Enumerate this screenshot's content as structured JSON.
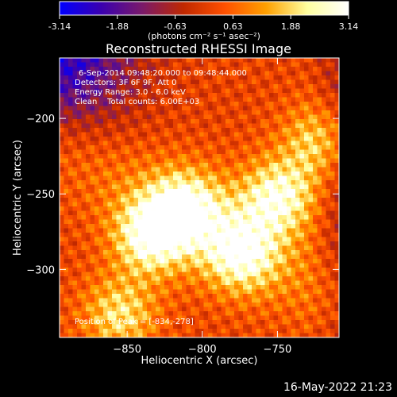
{
  "chart_data": {
    "type": "heatmap",
    "title": "Reconstructed RHESSI Image",
    "xlabel": "Heliocentric X (arcsec)",
    "ylabel": "Heliocentric Y (arcsec)",
    "xlim": [
      -895,
      -709
    ],
    "ylim": [
      -345,
      -160
    ],
    "xticks": [
      -850,
      -800,
      -750
    ],
    "yticks": [
      -200,
      -250,
      -300
    ],
    "colorbar": {
      "range": [
        -3.14,
        3.14
      ],
      "ticks": [
        "-3.14",
        "-1.88",
        "-0.63",
        "0.63",
        "1.88",
        "3.14"
      ],
      "unit_label": "(photons cm⁻² s⁻¹ asec⁻²)",
      "colors": [
        "#0000ff",
        "#3a00b0",
        "#7a1a6a",
        "#c02800",
        "#ff5000",
        "#ffa000",
        "#ffffa0",
        "#ffffff"
      ]
    },
    "annotations": {
      "time": "6-Sep-2014 09:48:20.000 to 09:48:44.000",
      "detectors": "Detectors: 3F 6F 9F, Att 0",
      "energy": "Energy Range: 3.0 - 6.0 keV",
      "clean": "Clean    Total counts: 6.00E+03",
      "peak": "Position of Peak = [-834,-278]"
    },
    "sources": [
      {
        "x": -834,
        "y": -278,
        "intensity": 3.14
      },
      {
        "x": -810,
        "y": -258,
        "intensity": 2.6
      },
      {
        "x": -775,
        "y": -290,
        "intensity": 2.7
      },
      {
        "x": -750,
        "y": -252,
        "intensity": 2.9
      },
      {
        "x": -855,
        "y": -330,
        "intensity": 2.2
      },
      {
        "x": -722,
        "y": -215,
        "intensity": 2.0
      }
    ]
  },
  "footer": {
    "date": "16-May-2022 21:23"
  }
}
